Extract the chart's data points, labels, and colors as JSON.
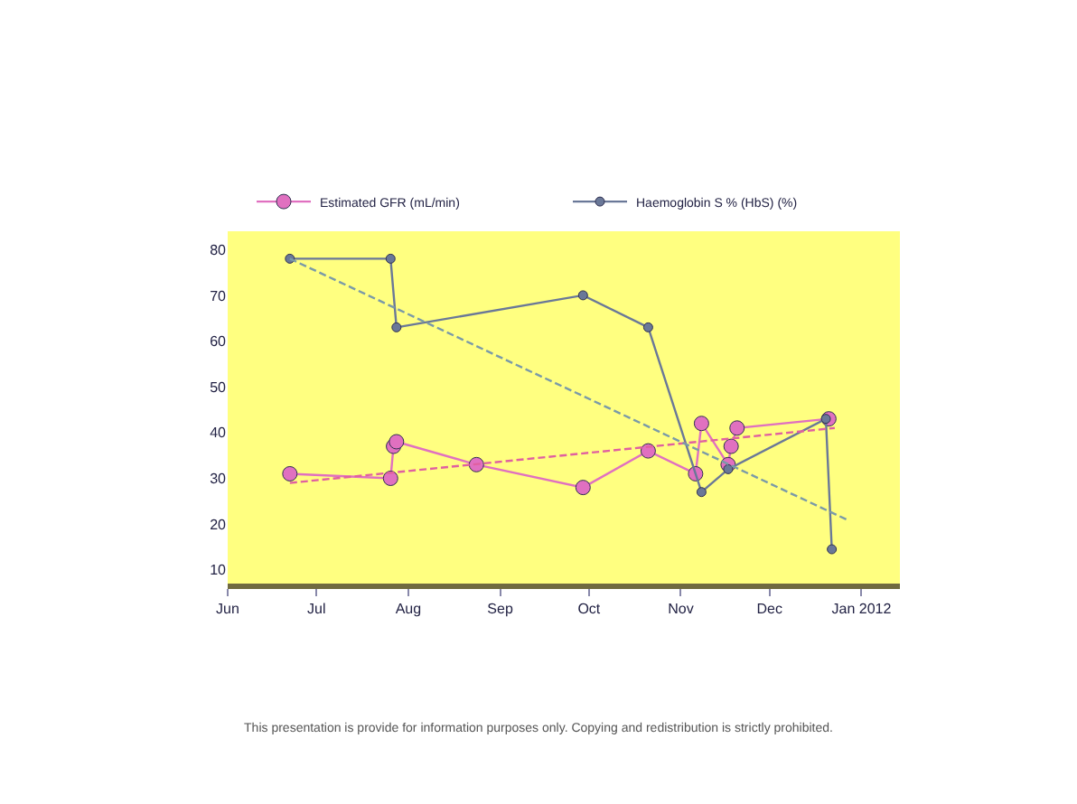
{
  "chart_data": {
    "type": "line",
    "legend": "top",
    "grid": false,
    "marker": "circle",
    "xlim": [
      "2011-06-01",
      "2012-01-14"
    ],
    "xticks": [
      {
        "value": "2011-06-01",
        "label": "Jun"
      },
      {
        "value": "2011-07-01",
        "label": "Jul"
      },
      {
        "value": "2011-08-01",
        "label": "Aug"
      },
      {
        "value": "2011-09-01",
        "label": "Sep"
      },
      {
        "value": "2011-10-01",
        "label": "Oct"
      },
      {
        "value": "2011-11-01",
        "label": "Nov"
      },
      {
        "value": "2011-12-01",
        "label": "Dec"
      },
      {
        "value": "2012-01-01",
        "label": "Jan 2012"
      }
    ],
    "ylim": [
      7,
      84
    ],
    "yticks": [
      10,
      20,
      30,
      40,
      50,
      60,
      70,
      80
    ],
    "series": [
      {
        "name": "Estimated GFR (mL/min)",
        "color": "#e070c0",
        "x": [
          "2011-06-22",
          "2011-07-26",
          "2011-07-27",
          "2011-07-28",
          "2011-08-24",
          "2011-09-29",
          "2011-10-21",
          "2011-11-06",
          "2011-11-08",
          "2011-11-17",
          "2011-11-18",
          "2011-11-20",
          "2011-12-21"
        ],
        "values": [
          31,
          30,
          37,
          38,
          33,
          28,
          36,
          31,
          42,
          33,
          37,
          41,
          43
        ]
      },
      {
        "name": "Haemoglobin S % (HbS) (%)",
        "color": "#6a7898",
        "x": [
          "2011-06-22",
          "2011-07-26",
          "2011-07-28",
          "2011-09-29",
          "2011-10-21",
          "2011-11-08",
          "2011-11-17",
          "2011-12-20",
          "2011-12-22"
        ],
        "values": [
          78,
          78,
          63,
          70,
          63,
          27,
          32,
          43,
          14.5
        ]
      },
      {
        "type": "line",
        "color": "#e060a0",
        "line_style": "dashed",
        "marker": "none",
        "x": [
          "2011-06-22",
          "2011-12-23"
        ],
        "values": [
          29,
          41
        ]
      },
      {
        "type": "line",
        "color": "#7a9aa8",
        "line_style": "dashed",
        "marker": "none",
        "x": [
          "2011-06-22",
          "2011-12-27"
        ],
        "values": [
          78,
          21
        ]
      }
    ],
    "annotations": [
      "This presentation is provide for information purposes only. Copying and redistribution is strictly prohibited."
    ]
  }
}
